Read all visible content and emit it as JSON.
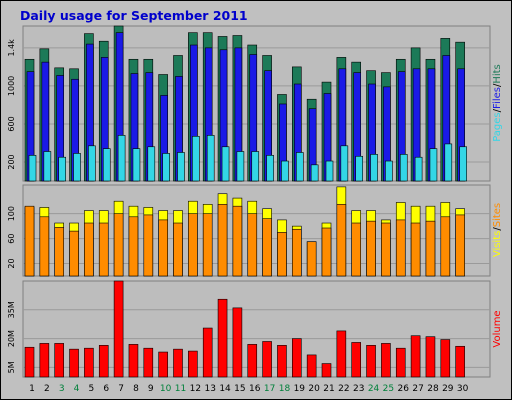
{
  "colors": {
    "background": "#c0c0c0",
    "panel": "#bdbdbd",
    "title": "#0000cc",
    "hits": "#1c7a58",
    "files": "#1a1ae6",
    "pages": "#33d6e6",
    "visits": "#ffff00",
    "sites": "#ff8c00",
    "volume": "#ff0000",
    "weekend_label": "#00803a",
    "weekday_label": "#000000"
  },
  "chart_data": [
    {
      "type": "bar",
      "title": "Daily usage for September 2011",
      "categories": [
        "1",
        "2",
        "3",
        "4",
        "5",
        "6",
        "7",
        "8",
        "9",
        "10",
        "11",
        "12",
        "13",
        "14",
        "15",
        "16",
        "17",
        "18",
        "19",
        "20",
        "21",
        "22",
        "23",
        "24",
        "25",
        "26",
        "27",
        "28",
        "29",
        "30"
      ],
      "weekend_days": [
        "3",
        "4",
        "10",
        "11",
        "17",
        "18",
        "24",
        "25"
      ],
      "ylabel_parts": [
        "Pages",
        "/",
        "Files",
        "/",
        "Hits"
      ],
      "ytick_labels": [
        "200",
        "600",
        "1000",
        "1.4k"
      ],
      "ytick_values": [
        200,
        600,
        1000,
        1400
      ],
      "ylim": [
        0,
        1630
      ],
      "grid": true,
      "series": [
        {
          "name": "Hits",
          "values": [
            1280,
            1390,
            1190,
            1180,
            1550,
            1470,
            1630,
            1280,
            1280,
            1120,
            1320,
            1560,
            1560,
            1520,
            1530,
            1430,
            1320,
            910,
            1200,
            860,
            1040,
            1300,
            1250,
            1160,
            1140,
            1280,
            1400,
            1280,
            1500,
            1460
          ]
        },
        {
          "name": "Files",
          "values": [
            1150,
            1250,
            1110,
            1070,
            1440,
            1300,
            1560,
            1130,
            1140,
            900,
            1100,
            1430,
            1400,
            1380,
            1400,
            1330,
            1160,
            810,
            1020,
            760,
            920,
            1180,
            1140,
            1020,
            990,
            1150,
            1180,
            1180,
            1320,
            1180
          ]
        },
        {
          "name": "Pages",
          "values": [
            270,
            310,
            250,
            290,
            370,
            340,
            480,
            340,
            360,
            290,
            300,
            470,
            480,
            360,
            310,
            310,
            270,
            210,
            300,
            170,
            210,
            370,
            260,
            280,
            210,
            280,
            250,
            340,
            390,
            360
          ]
        }
      ]
    },
    {
      "type": "bar",
      "categories": [
        "1",
        "2",
        "3",
        "4",
        "5",
        "6",
        "7",
        "8",
        "9",
        "10",
        "11",
        "12",
        "13",
        "14",
        "15",
        "16",
        "17",
        "18",
        "19",
        "20",
        "21",
        "22",
        "23",
        "24",
        "25",
        "26",
        "27",
        "28",
        "29",
        "30"
      ],
      "ylabel_parts": [
        "Visits",
        "/",
        "Sites"
      ],
      "ytick_labels": [
        "20",
        "60",
        "100"
      ],
      "ytick_values": [
        20,
        60,
        100
      ],
      "ylim": [
        0,
        146
      ],
      "grid": true,
      "series": [
        {
          "name": "Visits",
          "values": [
            110,
            110,
            85,
            85,
            105,
            105,
            120,
            112,
            110,
            105,
            105,
            120,
            115,
            132,
            125,
            120,
            108,
            90,
            80,
            55,
            85,
            143,
            105,
            105,
            90,
            118,
            112,
            112,
            118,
            108
          ]
        },
        {
          "name": "Sites",
          "values": [
            112,
            95,
            78,
            72,
            85,
            85,
            100,
            95,
            98,
            90,
            85,
            100,
            100,
            115,
            112,
            100,
            92,
            70,
            75,
            55,
            77,
            115,
            85,
            88,
            85,
            90,
            85,
            88,
            95,
            98
          ]
        }
      ]
    },
    {
      "type": "bar",
      "categories": [
        "1",
        "2",
        "3",
        "4",
        "5",
        "6",
        "7",
        "8",
        "9",
        "10",
        "11",
        "12",
        "13",
        "14",
        "15",
        "16",
        "17",
        "18",
        "19",
        "20",
        "21",
        "22",
        "23",
        "24",
        "25",
        "26",
        "27",
        "28",
        "29",
        "30"
      ],
      "ylabel_parts": [
        "Volume"
      ],
      "ytick_labels": [
        "5M",
        "20M",
        "35M"
      ],
      "ytick_values": [
        5,
        20,
        35
      ],
      "ylim": [
        0,
        50
      ],
      "grid": true,
      "series": [
        {
          "name": "Volume",
          "values": [
            15.5,
            17.5,
            17.5,
            14.5,
            15.0,
            16.5,
            50.0,
            17.0,
            15.0,
            13.0,
            14.5,
            13.5,
            25.5,
            40.5,
            36.0,
            17.0,
            18.5,
            16.5,
            20.0,
            11.5,
            7.0,
            24.0,
            18.0,
            16.5,
            17.5,
            15.0,
            21.5,
            21.0,
            19.5,
            16.0
          ]
        }
      ]
    }
  ]
}
